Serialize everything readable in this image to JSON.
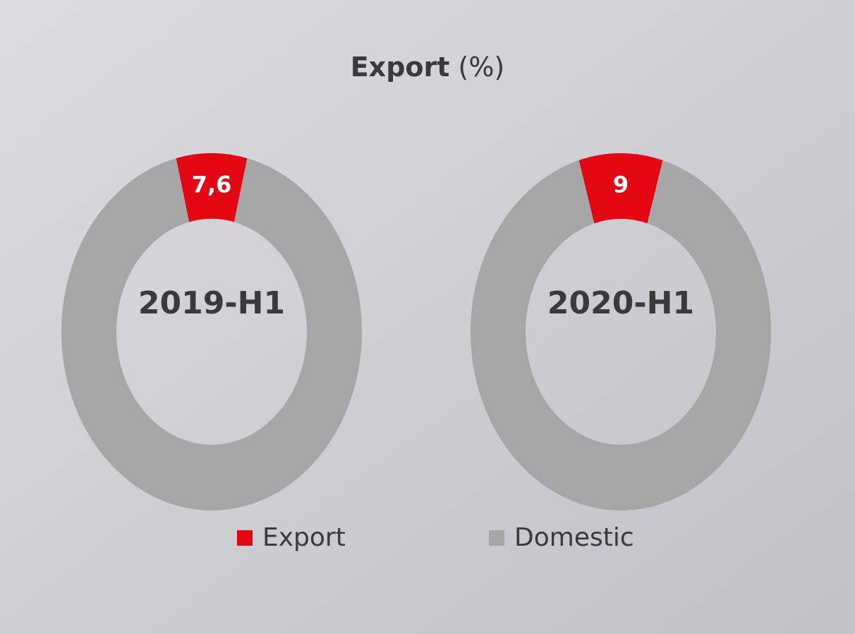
{
  "title": "Export",
  "title_unit": "(%)",
  "chart_data": [
    {
      "type": "donut",
      "center_label": "2019-H1",
      "categories": [
        "Export",
        "Domestic"
      ],
      "values": [
        7.6,
        92.4
      ],
      "value_labels": [
        "7,6",
        null
      ],
      "colors": [
        "#e30613",
        "#a6a6a6"
      ]
    },
    {
      "type": "donut",
      "center_label": "2020-H1",
      "categories": [
        "Export",
        "Domestic"
      ],
      "values": [
        9,
        91
      ],
      "value_labels": [
        "9",
        null
      ],
      "colors": [
        "#e30613",
        "#a6a6a6"
      ]
    }
  ]
}
